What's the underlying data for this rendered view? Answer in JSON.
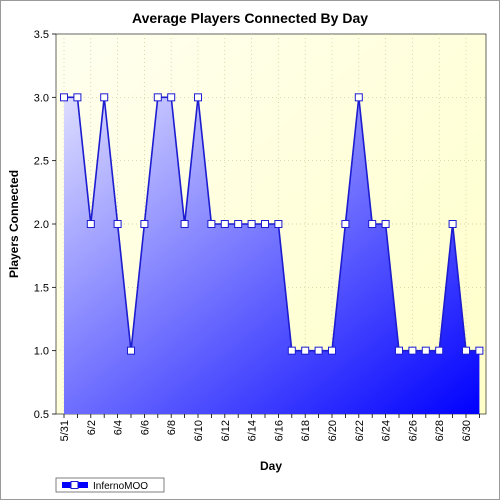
{
  "chart_data": {
    "type": "area",
    "title": "Average Players Connected By Day",
    "xlabel": "Day",
    "ylabel": "Players Connected",
    "ylim": [
      0.5,
      3.5
    ],
    "yticks": [
      "0.5",
      "1.0",
      "1.5",
      "2.0",
      "2.5",
      "3.0",
      "3.5"
    ],
    "x": [
      "5/31",
      "6/1",
      "6/2",
      "6/3",
      "6/4",
      "6/5",
      "6/6",
      "6/7",
      "6/8",
      "6/9",
      "6/10",
      "6/11",
      "6/12",
      "6/13",
      "6/14",
      "6/15",
      "6/16",
      "6/17",
      "6/18",
      "6/19",
      "6/20",
      "6/21",
      "6/22",
      "6/23",
      "6/24",
      "6/25",
      "6/26",
      "6/27",
      "6/28",
      "6/29",
      "6/30",
      "7/1"
    ],
    "xtick_labels": [
      "5/31",
      "6/2",
      "6/4",
      "6/6",
      "6/8",
      "6/10",
      "6/12",
      "6/14",
      "6/16",
      "6/18",
      "6/20",
      "6/22",
      "6/24",
      "6/26",
      "6/28",
      "6/30"
    ],
    "series": [
      {
        "name": "InfernoMOO",
        "values": [
          3,
          3,
          2,
          3,
          2,
          1,
          2,
          3,
          3,
          2,
          3,
          2,
          2,
          2,
          2,
          2,
          2,
          1,
          1,
          1,
          1,
          2,
          3,
          2,
          2,
          1,
          1,
          1,
          1,
          2,
          1,
          1
        ]
      }
    ],
    "grid": true,
    "legend": "bottom-left",
    "colors": {
      "line": "#1c1cd0",
      "fill_light": "#dcdcff",
      "fill_dark": "#0000ff",
      "plot_bg_top": "#fffff0",
      "plot_bg_bottom": "#ffffc8",
      "marker_fill": "#ffffff",
      "grid": "#c8c896"
    }
  }
}
